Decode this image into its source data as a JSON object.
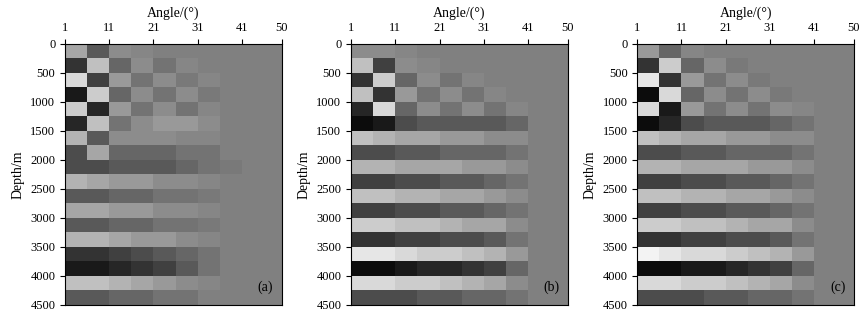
{
  "chart_data": [
    {
      "type": "heatmap",
      "x_label": "Angle/(°)",
      "y_label": "Depth/m",
      "annotation": "(a)",
      "xlim": [
        1,
        50
      ],
      "xticks": [
        1,
        11,
        21,
        31,
        41,
        50
      ],
      "ylim": [
        4500,
        0
      ],
      "yticks": [
        0,
        500,
        1000,
        1500,
        2000,
        2500,
        3000,
        3500,
        4000,
        4500
      ],
      "color": "gray",
      "color_range": [
        -1,
        1
      ],
      "x_edges": [
        1,
        6,
        11,
        16,
        21,
        26,
        31,
        36,
        41,
        45,
        50
      ],
      "y_edges": [
        0,
        250,
        500,
        750,
        1000,
        1250,
        1500,
        1750,
        2000,
        2250,
        2500,
        2750,
        3000,
        3250,
        3500,
        3750,
        4000,
        4250,
        4500
      ],
      "cells": [
        [
          0.3,
          -0.3,
          0.1,
          0.05,
          0,
          0,
          0,
          0,
          0,
          0
        ],
        [
          -0.6,
          0.5,
          -0.2,
          0.1,
          -0.1,
          0.05,
          0,
          0,
          0,
          0
        ],
        [
          0.7,
          -0.5,
          0.2,
          -0.1,
          0.1,
          -0.05,
          0.05,
          0,
          0,
          0
        ],
        [
          -0.8,
          0.6,
          -0.2,
          0.1,
          -0.1,
          0.1,
          -0.05,
          0,
          0,
          0
        ],
        [
          0.6,
          -0.7,
          0.2,
          -0.1,
          0.1,
          -0.1,
          0.05,
          0,
          0,
          0
        ],
        [
          -0.7,
          0.5,
          -0.1,
          0.1,
          0.2,
          0.2,
          0.1,
          0,
          0,
          0
        ],
        [
          0.4,
          -0.3,
          0.1,
          0.1,
          0.1,
          0.05,
          0.05,
          0,
          0,
          0
        ],
        [
          -0.4,
          0.3,
          -0.2,
          -0.2,
          -0.2,
          -0.1,
          -0.1,
          0,
          0,
          0
        ],
        [
          -0.4,
          -0.4,
          -0.3,
          -0.3,
          -0.3,
          -0.2,
          -0.1,
          -0.05,
          0,
          0
        ],
        [
          0.4,
          0.3,
          0.2,
          0.2,
          0.1,
          0.1,
          0.05,
          0,
          0,
          0
        ],
        [
          -0.3,
          -0.3,
          -0.2,
          -0.2,
          -0.1,
          -0.1,
          -0.05,
          0,
          0,
          0
        ],
        [
          0.3,
          0.3,
          0.2,
          0.2,
          0.1,
          0.1,
          0.05,
          0,
          0,
          0
        ],
        [
          -0.3,
          -0.3,
          -0.2,
          -0.2,
          -0.1,
          -0.1,
          -0.05,
          0,
          0,
          0
        ],
        [
          0.4,
          0.4,
          0.3,
          0.2,
          0.2,
          0.1,
          0.05,
          0,
          0,
          0
        ],
        [
          -0.6,
          -0.6,
          -0.5,
          -0.4,
          -0.3,
          -0.2,
          -0.1,
          0,
          0,
          0
        ],
        [
          -0.8,
          -0.8,
          -0.7,
          -0.6,
          -0.5,
          -0.3,
          -0.1,
          0,
          0,
          0
        ],
        [
          0.5,
          0.5,
          0.4,
          0.3,
          0.2,
          0.1,
          0.05,
          0,
          0,
          0
        ],
        [
          -0.3,
          -0.3,
          -0.2,
          -0.2,
          -0.1,
          -0.1,
          0,
          0,
          0,
          0
        ]
      ]
    },
    {
      "type": "heatmap",
      "x_label": "Angle/(°)",
      "y_label": "Depth/m",
      "annotation": "(b)",
      "xlim": [
        1,
        50
      ],
      "xticks": [
        1,
        11,
        21,
        31,
        41,
        50
      ],
      "ylim": [
        4500,
        0
      ],
      "yticks": [
        0,
        500,
        1000,
        1500,
        2000,
        2500,
        3000,
        3500,
        4000,
        4500
      ],
      "color": "gray",
      "color_range": [
        -1,
        1
      ],
      "x_edges": [
        1,
        6,
        11,
        16,
        21,
        26,
        31,
        36,
        41,
        45,
        50
      ],
      "y_edges": [
        0,
        250,
        500,
        750,
        1000,
        1250,
        1500,
        1750,
        2000,
        2250,
        2500,
        2750,
        3000,
        3250,
        3500,
        3750,
        4000,
        4250,
        4500
      ],
      "cells": [
        [
          0.1,
          0.1,
          0.05,
          0,
          0,
          0,
          0,
          0,
          0,
          0
        ],
        [
          0.5,
          -0.5,
          0.1,
          0.05,
          0,
          0,
          0,
          0,
          0,
          0
        ],
        [
          -0.6,
          0.6,
          -0.2,
          0.1,
          -0.1,
          0.05,
          0,
          0,
          0,
          0
        ],
        [
          0.5,
          -0.6,
          0.2,
          -0.1,
          0.1,
          -0.1,
          0.05,
          0,
          0,
          0
        ],
        [
          -0.7,
          0.7,
          -0.2,
          0.1,
          -0.1,
          0.1,
          -0.1,
          0.05,
          0,
          0
        ],
        [
          -0.9,
          -0.8,
          -0.4,
          -0.3,
          -0.3,
          -0.3,
          -0.3,
          -0.2,
          0,
          0
        ],
        [
          0.5,
          0.4,
          0.3,
          0.3,
          0.2,
          0.2,
          0.1,
          0.1,
          0,
          0
        ],
        [
          -0.4,
          -0.4,
          -0.3,
          -0.3,
          -0.2,
          -0.2,
          -0.2,
          -0.1,
          0,
          0
        ],
        [
          0.4,
          0.4,
          0.3,
          0.3,
          0.3,
          0.2,
          0.2,
          0.1,
          0,
          0
        ],
        [
          -0.5,
          -0.5,
          -0.4,
          -0.4,
          -0.3,
          -0.3,
          -0.2,
          -0.1,
          0,
          0
        ],
        [
          0.5,
          0.5,
          0.4,
          0.4,
          0.3,
          0.3,
          0.2,
          0.1,
          0,
          0
        ],
        [
          -0.5,
          -0.5,
          -0.4,
          -0.4,
          -0.3,
          -0.3,
          -0.2,
          -0.1,
          0,
          0
        ],
        [
          0.6,
          0.6,
          0.5,
          0.5,
          0.4,
          0.3,
          0.3,
          0.1,
          0,
          0
        ],
        [
          -0.6,
          -0.6,
          -0.5,
          -0.5,
          -0.4,
          -0.4,
          -0.3,
          -0.1,
          0,
          0
        ],
        [
          0.8,
          0.8,
          0.7,
          0.6,
          0.6,
          0.5,
          0.4,
          0.2,
          0,
          0
        ],
        [
          -0.9,
          -0.9,
          -0.8,
          -0.7,
          -0.7,
          -0.6,
          -0.5,
          -0.2,
          0,
          0
        ],
        [
          0.7,
          0.7,
          0.6,
          0.6,
          0.5,
          0.4,
          0.3,
          0.1,
          0,
          0
        ],
        [
          -0.4,
          -0.4,
          -0.4,
          -0.3,
          -0.3,
          -0.2,
          -0.2,
          -0.1,
          0,
          0
        ]
      ]
    },
    {
      "type": "heatmap",
      "x_label": "Angle/(°)",
      "y_label": "Depth/m",
      "annotation": "(c)",
      "xlim": [
        1,
        50
      ],
      "xticks": [
        1,
        11,
        21,
        31,
        41,
        50
      ],
      "ylim": [
        4500,
        0
      ],
      "yticks": [
        0,
        500,
        1000,
        1500,
        2000,
        2500,
        3000,
        3500,
        4000,
        4500
      ],
      "color": "gray",
      "color_range": [
        -1,
        1
      ],
      "x_edges": [
        1,
        6,
        11,
        16,
        21,
        26,
        31,
        36,
        41,
        45,
        50
      ],
      "y_edges": [
        0,
        250,
        500,
        750,
        1000,
        1250,
        1500,
        1750,
        2000,
        2250,
        2500,
        2750,
        3000,
        3250,
        3500,
        3750,
        4000,
        4250,
        4500
      ],
      "cells": [
        [
          0.2,
          -0.2,
          0.05,
          0,
          0,
          0,
          0,
          0,
          0,
          0
        ],
        [
          -0.6,
          0.6,
          -0.2,
          0.1,
          -0.05,
          0,
          0,
          0,
          0,
          0
        ],
        [
          0.8,
          -0.6,
          0.2,
          -0.1,
          0.1,
          -0.05,
          0,
          0,
          0,
          0
        ],
        [
          -0.9,
          0.7,
          -0.2,
          0.1,
          -0.1,
          0.1,
          -0.05,
          0,
          0,
          0
        ],
        [
          0.7,
          -0.8,
          0.2,
          -0.1,
          0.1,
          -0.1,
          0.1,
          0.05,
          0,
          0
        ],
        [
          -0.9,
          -0.7,
          -0.4,
          -0.3,
          -0.3,
          -0.3,
          -0.2,
          -0.1,
          0,
          0
        ],
        [
          0.5,
          0.4,
          0.3,
          0.3,
          0.2,
          0.2,
          0.1,
          0.1,
          0,
          0
        ],
        [
          -0.4,
          -0.4,
          -0.3,
          -0.3,
          -0.2,
          -0.2,
          -0.2,
          -0.1,
          0,
          0
        ],
        [
          0.4,
          0.4,
          0.3,
          0.3,
          0.3,
          0.2,
          0.2,
          0.1,
          0,
          0
        ],
        [
          -0.5,
          -0.5,
          -0.4,
          -0.4,
          -0.3,
          -0.3,
          -0.2,
          -0.1,
          0,
          0
        ],
        [
          0.5,
          0.5,
          0.4,
          0.4,
          0.3,
          0.3,
          0.2,
          0.1,
          0,
          0
        ],
        [
          -0.5,
          -0.5,
          -0.4,
          -0.4,
          -0.3,
          -0.3,
          -0.2,
          -0.1,
          0,
          0
        ],
        [
          0.6,
          0.6,
          0.5,
          0.5,
          0.4,
          0.3,
          0.3,
          0.1,
          0,
          0
        ],
        [
          -0.6,
          -0.6,
          -0.5,
          -0.5,
          -0.4,
          -0.4,
          -0.3,
          -0.1,
          0,
          0
        ],
        [
          0.9,
          0.8,
          0.7,
          0.7,
          0.6,
          0.5,
          0.4,
          0.2,
          0,
          0
        ],
        [
          -0.9,
          -0.9,
          -0.8,
          -0.8,
          -0.7,
          -0.6,
          -0.5,
          -0.2,
          0,
          0
        ],
        [
          0.7,
          0.7,
          0.6,
          0.6,
          0.5,
          0.4,
          0.3,
          0.1,
          0,
          0
        ],
        [
          -0.4,
          -0.4,
          -0.4,
          -0.3,
          -0.3,
          -0.2,
          -0.2,
          -0.1,
          0,
          0
        ]
      ]
    }
  ]
}
